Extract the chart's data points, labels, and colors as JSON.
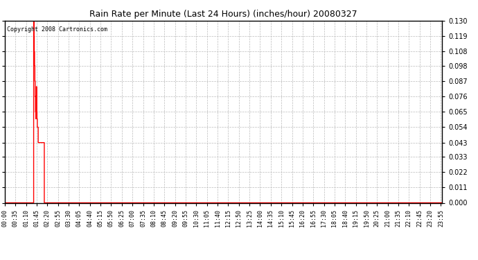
{
  "title": "Rain Rate per Minute (Last 24 Hours) (inches/hour) 20080327",
  "copyright_text": "Copyright 2008 Cartronics.com",
  "background_color": "#ffffff",
  "plot_bg_color": "#ffffff",
  "grid_color": "#bbbbbb",
  "line_color": "#ff0000",
  "ylim": [
    0.0,
    0.13
  ],
  "yticks": [
    0.0,
    0.011,
    0.022,
    0.033,
    0.043,
    0.054,
    0.065,
    0.076,
    0.087,
    0.098,
    0.108,
    0.119,
    0.13
  ],
  "num_minutes": 1440,
  "spike_data": [
    [
      94,
      0.0
    ],
    [
      95,
      0.13
    ],
    [
      96,
      0.119
    ],
    [
      97,
      0.108
    ],
    [
      98,
      0.098
    ],
    [
      99,
      0.087
    ],
    [
      100,
      0.076
    ],
    [
      101,
      0.065
    ],
    [
      102,
      0.06
    ],
    [
      103,
      0.065
    ],
    [
      104,
      0.083
    ],
    [
      105,
      0.065
    ],
    [
      106,
      0.06
    ],
    [
      107,
      0.054
    ],
    [
      108,
      0.054
    ],
    [
      109,
      0.054
    ],
    [
      110,
      0.043
    ],
    [
      111,
      0.043
    ],
    [
      112,
      0.043
    ],
    [
      113,
      0.043
    ],
    [
      114,
      0.043
    ],
    [
      115,
      0.043
    ],
    [
      116,
      0.043
    ],
    [
      117,
      0.043
    ],
    [
      118,
      0.043
    ],
    [
      119,
      0.043
    ],
    [
      120,
      0.043
    ],
    [
      121,
      0.043
    ],
    [
      122,
      0.043
    ],
    [
      123,
      0.043
    ],
    [
      124,
      0.043
    ],
    [
      125,
      0.043
    ],
    [
      126,
      0.043
    ],
    [
      127,
      0.043
    ],
    [
      128,
      0.043
    ],
    [
      129,
      0.043
    ],
    [
      130,
      0.0
    ]
  ],
  "x_tick_interval": 35,
  "title_fontsize": 9,
  "copyright_fontsize": 6,
  "ytick_fontsize": 7,
  "xtick_fontsize": 6
}
